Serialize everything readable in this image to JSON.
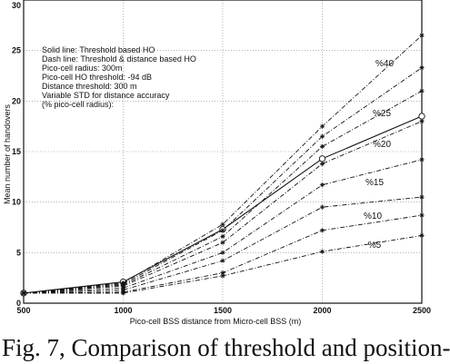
{
  "chart_data": {
    "type": "line",
    "xlabel": "Pico-cell BSS distance from Micro-cell BSS (m)",
    "ylabel": "Mean number of handovers",
    "xlim": [
      500,
      2500
    ],
    "ylim": [
      0,
      30
    ],
    "x_ticks": [
      "500",
      "1000",
      "1500",
      "2000",
      "2500"
    ],
    "y_ticks": [
      "0",
      "5",
      "10",
      "15",
      "20",
      "25",
      "30"
    ],
    "grid": true,
    "legend_text": [
      "Solid line: Threshold based HO",
      "Dash line: Threshold & distance based HO",
      "Pico-cell radius: 300m",
      "Pico-cell HO threshold: -94 dB",
      "Distance threshold: 300 m",
      "Variable STD for distance accuracy",
      "(% pico-cell radius):"
    ],
    "x": [
      500,
      1000,
      1500,
      2000,
      2500
    ],
    "series": [
      {
        "name": "",
        "style": "solid",
        "marker": "o",
        "label": "",
        "values": [
          1.0,
          2.1,
          7.3,
          14.3,
          18.5
        ]
      },
      {
        "name": "",
        "style": "dash",
        "marker": "*",
        "label": "",
        "values": [
          1.0,
          2.0,
          7.8,
          17.5,
          26.5
        ]
      },
      {
        "name": "",
        "style": "dash",
        "marker": "*",
        "label": "%40",
        "values": [
          1.0,
          1.9,
          7.2,
          16.5,
          23.3
        ]
      },
      {
        "name": "",
        "style": "dash",
        "marker": "*",
        "label": "%25",
        "values": [
          1.0,
          1.8,
          6.6,
          15.5,
          21.0
        ]
      },
      {
        "name": "",
        "style": "dash",
        "marker": "*",
        "label": "%20",
        "values": [
          1.0,
          1.7,
          6.0,
          13.8,
          18.0
        ]
      },
      {
        "name": "",
        "style": "dash",
        "marker": "*",
        "label": "%15",
        "values": [
          1.0,
          1.5,
          5.0,
          11.7,
          14.2
        ]
      },
      {
        "name": "",
        "style": "dash",
        "marker": "*",
        "label": "%10",
        "values": [
          1.0,
          1.3,
          4.2,
          9.5,
          10.5
        ]
      },
      {
        "name": "",
        "style": "dash",
        "marker": "*",
        "label": "%5",
        "values": [
          1.0,
          1.1,
          3.0,
          7.2,
          8.7
        ]
      },
      {
        "name": "",
        "style": "dash",
        "marker": "*",
        "label": "",
        "values": [
          1.0,
          1.0,
          2.7,
          5.1,
          6.7
        ]
      }
    ]
  },
  "caption": "Fig. 7, Comparison of threshold  and position-"
}
